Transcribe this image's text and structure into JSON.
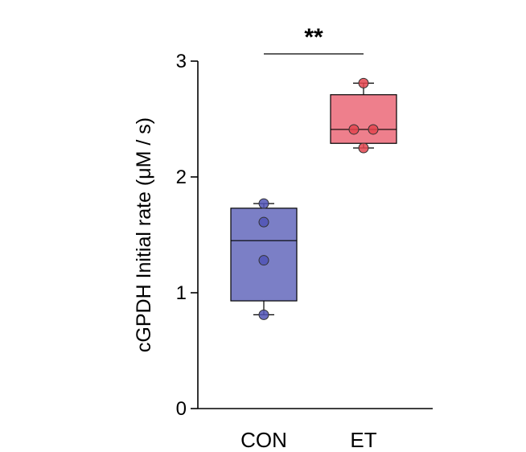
{
  "chart_data": {
    "type": "box",
    "ylabel": "cGPDH Initial rate (μM / s)",
    "ylim": [
      0,
      3
    ],
    "yticks": [
      0,
      1,
      2,
      3
    ],
    "categories": [
      "CON",
      "ET"
    ],
    "groups": [
      {
        "name": "CON",
        "color": "#7b7fc6",
        "point_color": "#5054b5",
        "min": 0.81,
        "q1": 0.93,
        "median": 1.45,
        "q3": 1.73,
        "max": 1.77,
        "points": [
          0.81,
          1.28,
          1.61,
          1.77
        ]
      },
      {
        "name": "ET",
        "color": "#ee7f8c",
        "point_color": "#e3454f",
        "min": 2.25,
        "q1": 2.29,
        "median": 2.41,
        "q3": 2.71,
        "max": 2.81,
        "points": [
          2.25,
          2.41,
          2.41,
          2.81
        ]
      }
    ],
    "significance": {
      "between": [
        "CON",
        "ET"
      ],
      "label": "**"
    },
    "grid": false,
    "legend": "none"
  }
}
